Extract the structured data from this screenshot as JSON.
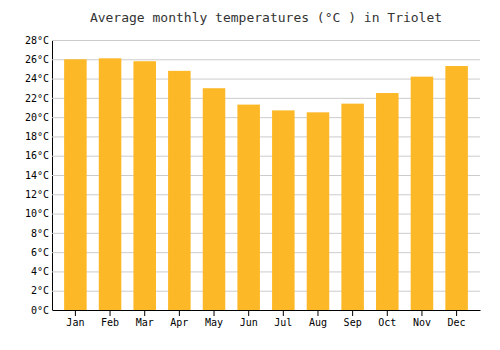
{
  "chart_data": {
    "type": "bar",
    "title": "Average monthly temperatures (°C ) in Triolet",
    "categories": [
      "Jan",
      "Feb",
      "Mar",
      "Apr",
      "May",
      "Jun",
      "Jul",
      "Aug",
      "Sep",
      "Oct",
      "Nov",
      "Dec"
    ],
    "values": [
      26.0,
      26.1,
      25.8,
      24.8,
      23.0,
      21.3,
      20.7,
      20.5,
      21.4,
      22.5,
      24.2,
      25.3
    ],
    "color": "#FDB827",
    "ylim": [
      0,
      28
    ],
    "yticks": [
      {
        "value": 0,
        "label": "0°C"
      },
      {
        "value": 2,
        "label": "2°C"
      },
      {
        "value": 4,
        "label": "4°C"
      },
      {
        "value": 6,
        "label": "6°C"
      },
      {
        "value": 8,
        "label": "8°C"
      },
      {
        "value": 10,
        "label": "10°C"
      },
      {
        "value": 12,
        "label": "12°C"
      },
      {
        "value": 14,
        "label": "14°C"
      },
      {
        "value": 16,
        "label": "16°C"
      },
      {
        "value": 18,
        "label": "18°C"
      },
      {
        "value": 20,
        "label": "20°C"
      },
      {
        "value": 22,
        "label": "22°C"
      },
      {
        "value": 24,
        "label": "24°C"
      },
      {
        "value": 26,
        "label": "26°C"
      },
      {
        "value": 28,
        "label": "28°C"
      }
    ],
    "grid": true
  }
}
